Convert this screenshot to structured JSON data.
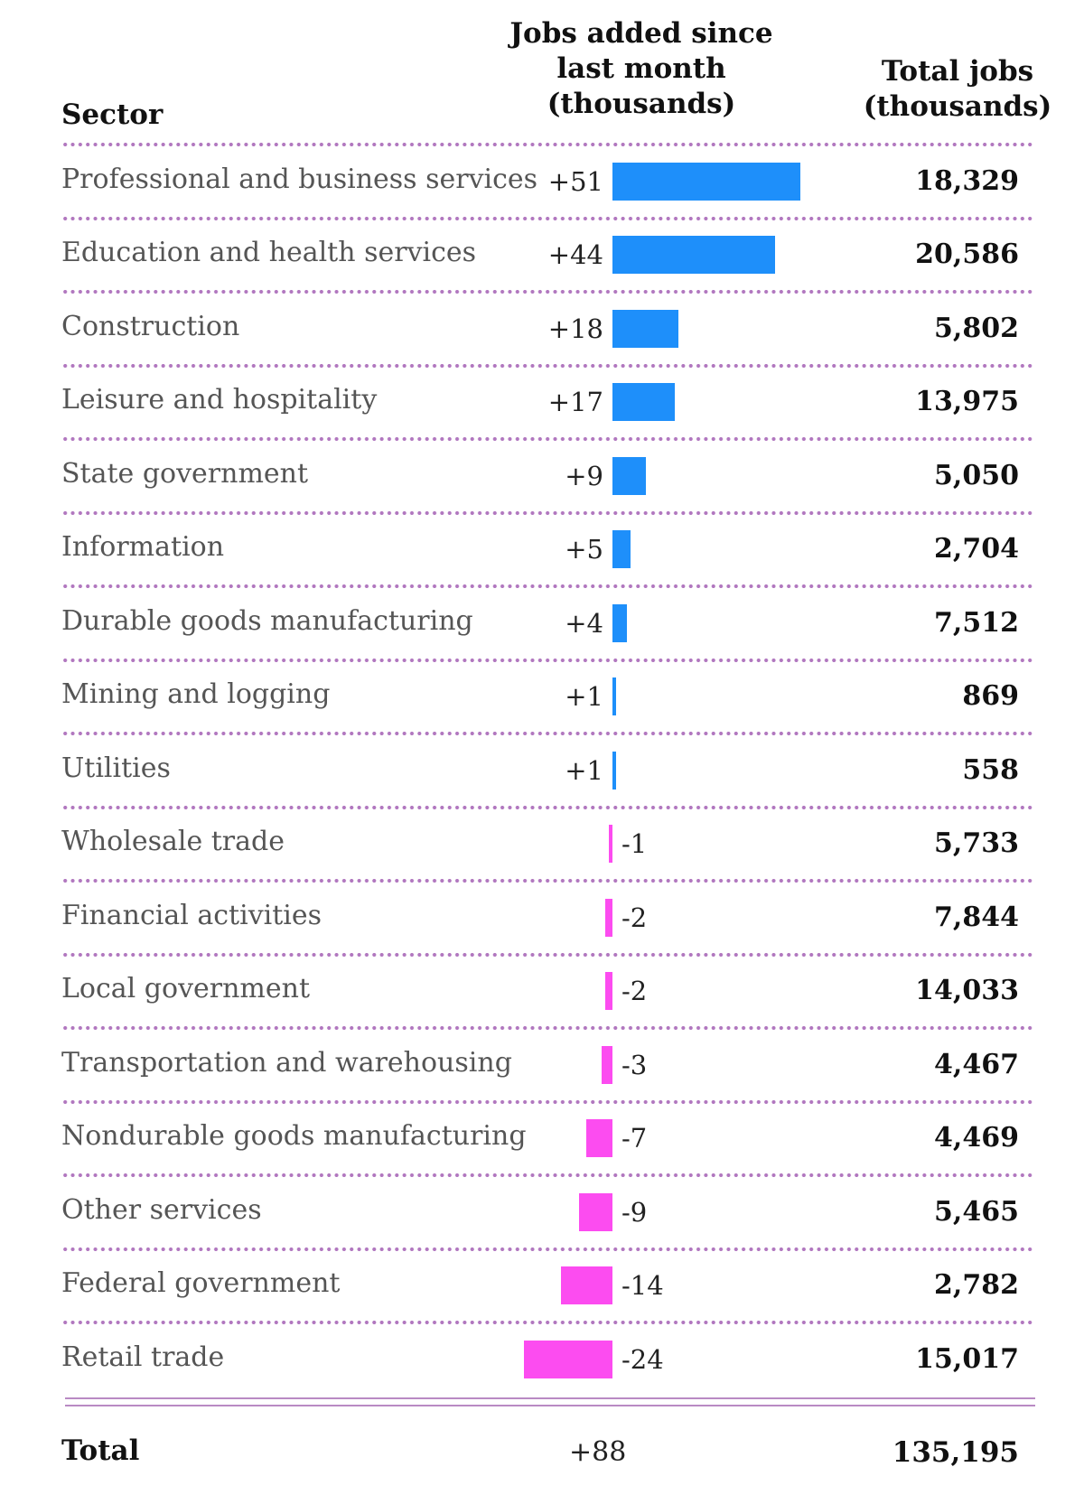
{
  "chart_data": {
    "type": "bar",
    "columns": {
      "sector": "Sector",
      "change": "Jobs added since\nlast month\n(thousands)",
      "total": "Total jobs\n(thousands)"
    },
    "categories": [
      "Professional and business services",
      "Education and health services",
      "Construction",
      "Leisure and hospitality",
      "State government",
      "Information",
      "Durable goods manufacturing",
      "Mining and logging",
      "Utilities",
      "Wholesale trade",
      "Financial activities",
      "Local government",
      "Transportation and warehousing",
      "Nondurable goods manufacturing",
      "Other services",
      "Federal government",
      "Retail trade"
    ],
    "change_labels": [
      "+51",
      "+44",
      "+18",
      "+17",
      "+9",
      "+5",
      "+4",
      "+1",
      "+1",
      "-1",
      "-2",
      "-2",
      "-3",
      "-7",
      "-9",
      "-14",
      "-24"
    ],
    "values": [
      51,
      44,
      18,
      17,
      9,
      5,
      4,
      1,
      1,
      -1,
      -2,
      -2,
      -3,
      -7,
      -9,
      -14,
      -24
    ],
    "total_labels": [
      "18,329",
      "20,586",
      "5,802",
      "13,975",
      "5,050",
      "2,704",
      "7,512",
      "869",
      "558",
      "5,733",
      "7,844",
      "14,033",
      "4,467",
      "4,469",
      "5,465",
      "2,782",
      "15,017"
    ],
    "totals": [
      18329,
      20586,
      5802,
      13975,
      5050,
      2704,
      7512,
      869,
      558,
      5733,
      7844,
      14033,
      4467,
      4469,
      5465,
      2782,
      15017
    ],
    "summary": {
      "label": "Total",
      "change_label": "+88",
      "change": 88,
      "total_label": "135,195",
      "total": 135195
    },
    "colors": {
      "positive": "#1e8ffa",
      "negative": "#fc4cf0",
      "separator": "#b177bf"
    }
  }
}
